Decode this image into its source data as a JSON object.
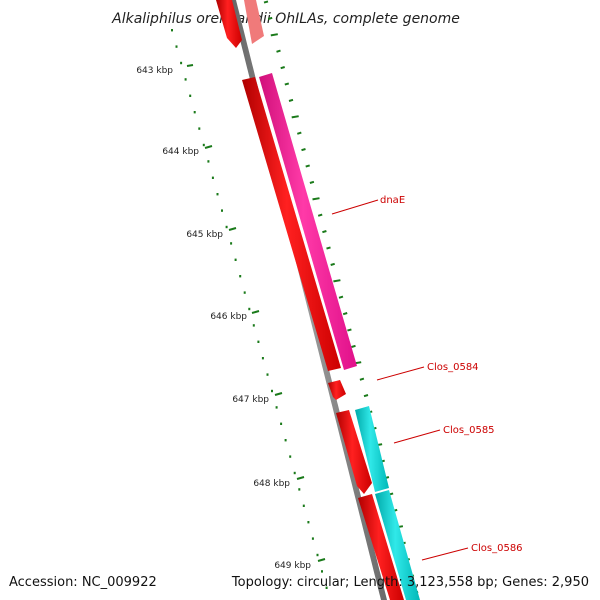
{
  "title": "Alkaliphilus oremlandii OhILAs, complete genome",
  "footer": {
    "accession": "Accession: NC_009922",
    "summary": "Topology: circular; Length: 3,123,558 bp; Genes: 2,950"
  },
  "kbp_labels": [
    "643 kbp",
    "644 kbp",
    "645 kbp",
    "646 kbp",
    "647 kbp",
    "648 kbp",
    "649 kbp"
  ],
  "genes": [
    {
      "label": "dnaE",
      "color": "#ff1493"
    },
    {
      "label": "Clos_0584",
      "color": "#ff0000"
    },
    {
      "label": "Clos_0585",
      "color": "#00cccc"
    },
    {
      "label": "Clos_0586",
      "color": "#00cccc"
    }
  ],
  "colors": {
    "backbone": "#808080",
    "cds_red": "#ff0000",
    "cds_pink": "#ff1493",
    "cds_cyan": "#00cccc",
    "cds_faded": "#f08080",
    "ticks": "#1a7a1a",
    "label_line": "#cc0000"
  }
}
